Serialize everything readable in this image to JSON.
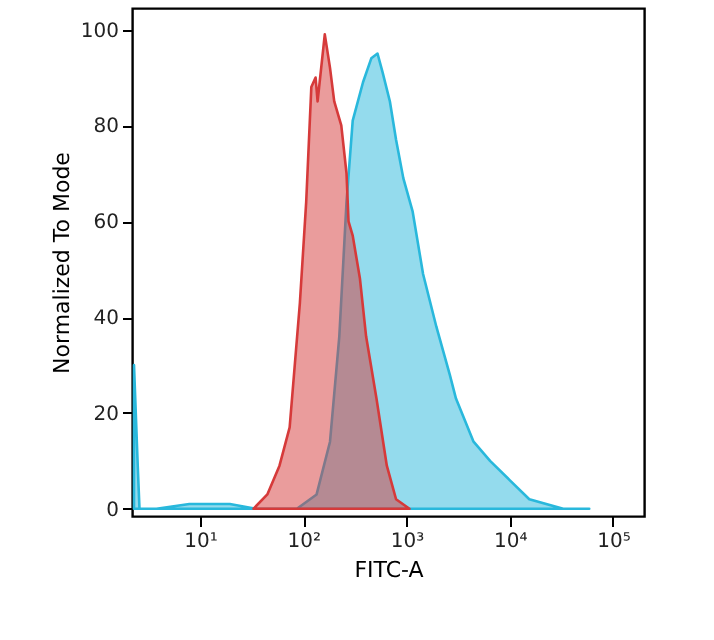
{
  "chart_data": {
    "type": "area",
    "xlabel": "FITC-A",
    "ylabel": "Normalized To Mode",
    "log": "x",
    "xlim": [
      2.2,
      200000
    ],
    "xticks": [
      {
        "value": 10,
        "label": "10¹"
      },
      {
        "value": 100,
        "label": "10²"
      },
      {
        "value": 1000,
        "label": "10³"
      },
      {
        "value": 10000,
        "label": "10⁴"
      },
      {
        "value": 100000,
        "label": "10⁵"
      }
    ],
    "ylim": [
      -1.5,
      104.5
    ],
    "yticks": [
      0,
      20,
      40,
      60,
      80,
      100
    ],
    "grid": false,
    "series": [
      {
        "color": "#29b8dc",
        "x": [
          2.3,
          2.5,
          2.6,
          3.8,
          7.9,
          19.5,
          35,
          87,
          135,
          182,
          224,
          263,
          302,
          380,
          457,
          525,
          589,
          692,
          794,
          933,
          1150,
          1450,
          1950,
          2630,
          3020,
          4470,
          6460,
          10000,
          15500,
          33000,
          59000
        ],
        "values": [
          30,
          9,
          0,
          0,
          1,
          1,
          0,
          0,
          3,
          14,
          36,
          64,
          81,
          89,
          94,
          95,
          91,
          85,
          77,
          69,
          62,
          49,
          38,
          28,
          23,
          14,
          10,
          6,
          2,
          0,
          0
        ]
      },
      {
        "color": "#d63a3a",
        "x": [
          33,
          45,
          59,
          74,
          93,
          107,
          120,
          132,
          138,
          162,
          182,
          200,
          234,
          263,
          275,
          302,
          355,
          407,
          513,
          646,
          794,
          1070
        ],
        "values": [
          0,
          3,
          9,
          17,
          43,
          64,
          88,
          90,
          85,
          99,
          92,
          85,
          80,
          70,
          60,
          57,
          48,
          36,
          23,
          9,
          2,
          0
        ]
      }
    ]
  }
}
